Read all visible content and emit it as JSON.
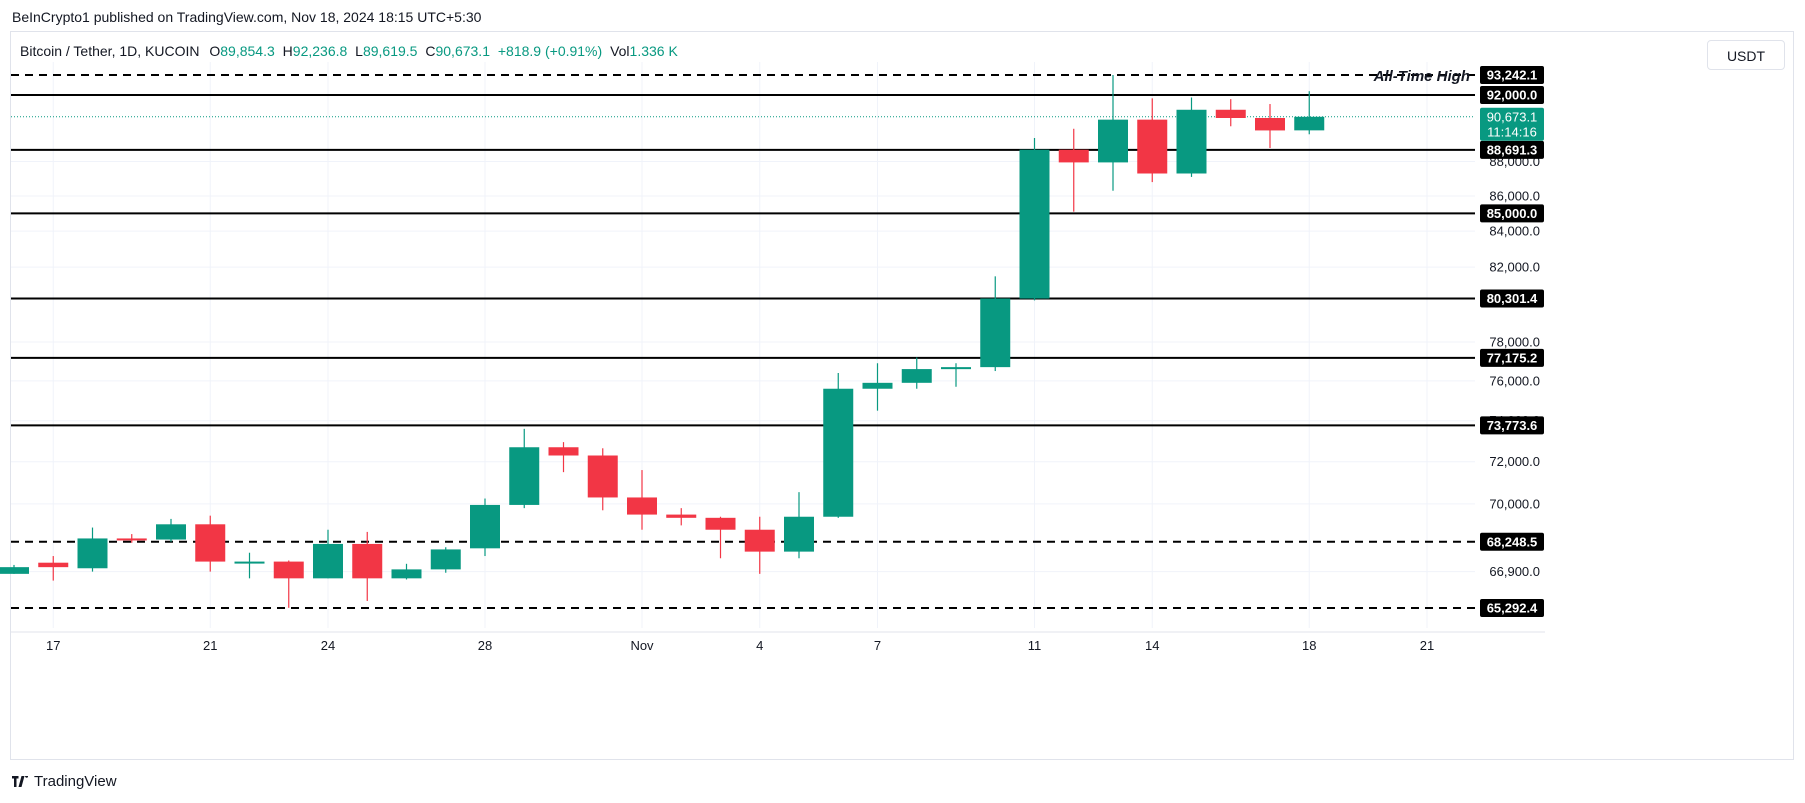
{
  "publisher_line": "BeInCrypto1 published on TradingView.com, Nov 18, 2024 18:15 UTC+5:30",
  "legend": {
    "symbol": "Bitcoin / Tether, 1D, KUCOIN",
    "open_label": "O",
    "open": "89,854.3",
    "high_label": "H",
    "high": "92,236.8",
    "low_label": "L",
    "low": "89,619.5",
    "close_label": "C",
    "close": "90,673.1",
    "change": "+818.9 (+0.91%)",
    "vol_label": "Vol",
    "vol": "1.336 K"
  },
  "currency_button": "USDT",
  "footer_brand": "TradingView",
  "colors": {
    "up": "#089981",
    "down": "#f23645",
    "level_line": "#000000",
    "level_label_bg": "#000000",
    "last_price": "#089981",
    "grid": "#f0f3fa"
  },
  "chart_data": {
    "type": "candlestick",
    "symbol": "BTC/USDT",
    "timeframe": "1D",
    "exchange": "KUCOIN",
    "candles": [
      {
        "date": "2024-10-16",
        "open": 66800,
        "high": 67200,
        "low": 66800,
        "close": 67100
      },
      {
        "date": "2024-10-17",
        "open": 67300,
        "high": 67600,
        "low": 66500,
        "close": 67100
      },
      {
        "date": "2024-10-18",
        "open": 67050,
        "high": 68900,
        "low": 66900,
        "close": 68400
      },
      {
        "date": "2024-10-19",
        "open": 68400,
        "high": 68600,
        "low": 68200,
        "close": 68350
      },
      {
        "date": "2024-10-20",
        "open": 68350,
        "high": 69300,
        "low": 68250,
        "close": 69050
      },
      {
        "date": "2024-10-21",
        "open": 69050,
        "high": 69450,
        "low": 66900,
        "close": 67350
      },
      {
        "date": "2024-10-22",
        "open": 67350,
        "high": 67750,
        "low": 66600,
        "close": 67350
      },
      {
        "date": "2024-10-23",
        "open": 67350,
        "high": 67400,
        "low": 65300,
        "close": 66600
      },
      {
        "date": "2024-10-24",
        "open": 66600,
        "high": 68800,
        "low": 66600,
        "close": 68150
      },
      {
        "date": "2024-10-25",
        "open": 68150,
        "high": 68700,
        "low": 65600,
        "close": 66600
      },
      {
        "date": "2024-10-26",
        "open": 66600,
        "high": 67250,
        "low": 66550,
        "close": 67000
      },
      {
        "date": "2024-10-27",
        "open": 67000,
        "high": 68000,
        "low": 66850,
        "close": 67900
      },
      {
        "date": "2024-10-28",
        "open": 67950,
        "high": 70250,
        "low": 67600,
        "close": 69950
      },
      {
        "date": "2024-10-29",
        "open": 69950,
        "high": 73600,
        "low": 69800,
        "close": 72700
      },
      {
        "date": "2024-10-30",
        "open": 72700,
        "high": 72950,
        "low": 71500,
        "close": 72300
      },
      {
        "date": "2024-10-31",
        "open": 72300,
        "high": 72650,
        "low": 69700,
        "close": 70300
      },
      {
        "date": "2024-11-01",
        "open": 70300,
        "high": 71600,
        "low": 68800,
        "close": 69500
      },
      {
        "date": "2024-11-02",
        "open": 69500,
        "high": 69800,
        "low": 69000,
        "close": 69350
      },
      {
        "date": "2024-11-03",
        "open": 69350,
        "high": 69400,
        "low": 67500,
        "close": 68800
      },
      {
        "date": "2024-11-04",
        "open": 68800,
        "high": 69400,
        "low": 66800,
        "close": 67800
      },
      {
        "date": "2024-11-05",
        "open": 67800,
        "high": 70550,
        "low": 67500,
        "close": 69400
      },
      {
        "date": "2024-11-06",
        "open": 69400,
        "high": 76400,
        "low": 69350,
        "close": 75600
      },
      {
        "date": "2024-11-07",
        "open": 75600,
        "high": 76900,
        "low": 74500,
        "close": 75900
      },
      {
        "date": "2024-11-08",
        "open": 75900,
        "high": 77200,
        "low": 75600,
        "close": 76600
      },
      {
        "date": "2024-11-09",
        "open": 76600,
        "high": 76900,
        "low": 75700,
        "close": 76700
      },
      {
        "date": "2024-11-10",
        "open": 76700,
        "high": 81500,
        "low": 76500,
        "close": 80300
      },
      {
        "date": "2024-11-11",
        "open": 80300,
        "high": 89400,
        "low": 80200,
        "close": 88700
      },
      {
        "date": "2024-11-12",
        "open": 88700,
        "high": 89950,
        "low": 85100,
        "close": 87950
      },
      {
        "date": "2024-11-13",
        "open": 87950,
        "high": 93242.1,
        "low": 86300,
        "close": 90500
      },
      {
        "date": "2024-11-14",
        "open": 90500,
        "high": 91800,
        "low": 86800,
        "close": 87300
      },
      {
        "date": "2024-11-15",
        "open": 87300,
        "high": 91850,
        "low": 87100,
        "close": 91100
      },
      {
        "date": "2024-11-16",
        "open": 91100,
        "high": 91750,
        "low": 90100,
        "close": 90600
      },
      {
        "date": "2024-11-17",
        "open": 90600,
        "high": 91450,
        "low": 88800,
        "close": 89850
      },
      {
        "date": "2024-11-18",
        "open": 89854.3,
        "high": 92236.8,
        "low": 89619.5,
        "close": 90673.1
      }
    ],
    "x_ticks": [
      "17",
      "21",
      "24",
      "28",
      "Nov",
      "4",
      "7",
      "11",
      "14",
      "18",
      "21"
    ],
    "y_ticks": [
      "66,900.0",
      "70,000.0",
      "72,000.0",
      "74,000.0",
      "76,000.0",
      "78,000.0",
      "82,000.0",
      "84,000.0",
      "86,000.0",
      "88,000.0"
    ],
    "levels": [
      {
        "value": 93242.1,
        "label": "93,242.1",
        "style": "dashed",
        "annotation": "All-Time High"
      },
      {
        "value": 92000.0,
        "label": "92,000.0",
        "style": "solid"
      },
      {
        "value": 88691.3,
        "label": "88,691.3",
        "style": "solid"
      },
      {
        "value": 85000.0,
        "label": "85,000.0",
        "style": "solid"
      },
      {
        "value": 80301.4,
        "label": "80,301.4",
        "style": "solid"
      },
      {
        "value": 77175.2,
        "label": "77,175.2",
        "style": "solid"
      },
      {
        "value": 73773.6,
        "label": "73,773.6",
        "style": "solid"
      },
      {
        "value": 68248.5,
        "label": "68,248.5",
        "style": "dashed"
      },
      {
        "value": 65292.4,
        "label": "65,292.4",
        "style": "dashed"
      }
    ],
    "last_price": {
      "value": 90673.1,
      "label": "90,673.1",
      "countdown": "11:14:16"
    },
    "y_axis_currency": "USDT",
    "scale": "log",
    "grid": true
  }
}
